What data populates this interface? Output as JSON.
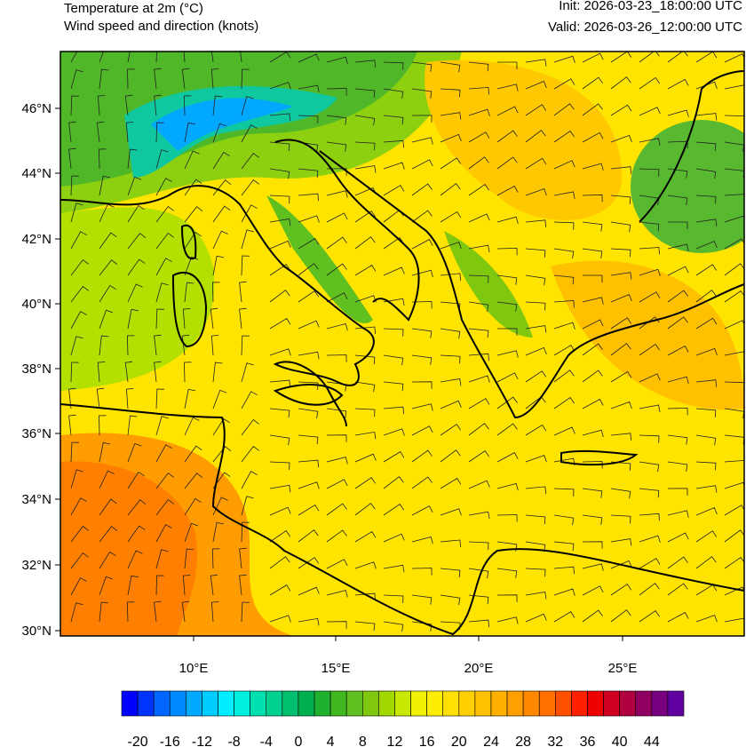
{
  "header": {
    "title_line1": "Temperature at 2m   (°C)",
    "title_line2": "Wind speed and direction   (knots)",
    "init": "Init: 2026-03-23_18:00:00 UTC",
    "valid": "Valid: 2026-03-26_12:00:00 UTC"
  },
  "map": {
    "lat_labels": [
      "46°N",
      "44°N",
      "42°N",
      "40°N",
      "38°N",
      "36°N",
      "34°N",
      "32°N",
      "30°N"
    ],
    "lon_labels": [
      "10°E",
      "15°E",
      "20°E",
      "25°E"
    ]
  },
  "colorbar": {
    "lim": [
      -22,
      48
    ],
    "ticks": [
      -20,
      -16,
      -12,
      -8,
      -4,
      0,
      4,
      8,
      12,
      16,
      20,
      24,
      28,
      32,
      36,
      40,
      44
    ],
    "colors": [
      "#0000ff",
      "#0033ff",
      "#0066ff",
      "#0088ff",
      "#00aaff",
      "#00ccff",
      "#00eeff",
      "#00f0e0",
      "#00e0b0",
      "#00d090",
      "#00c070",
      "#00b050",
      "#20b030",
      "#40b820",
      "#60c020",
      "#80c810",
      "#a0d800",
      "#c8e800",
      "#f0f000",
      "#ffee00",
      "#ffe000",
      "#ffd000",
      "#ffc000",
      "#ffb000",
      "#ffa000",
      "#ff8800",
      "#ff7000",
      "#ff5000",
      "#ff2000",
      "#ee0000",
      "#d00020",
      "#b00040",
      "#900060",
      "#780080",
      "#6000a0"
    ]
  }
}
